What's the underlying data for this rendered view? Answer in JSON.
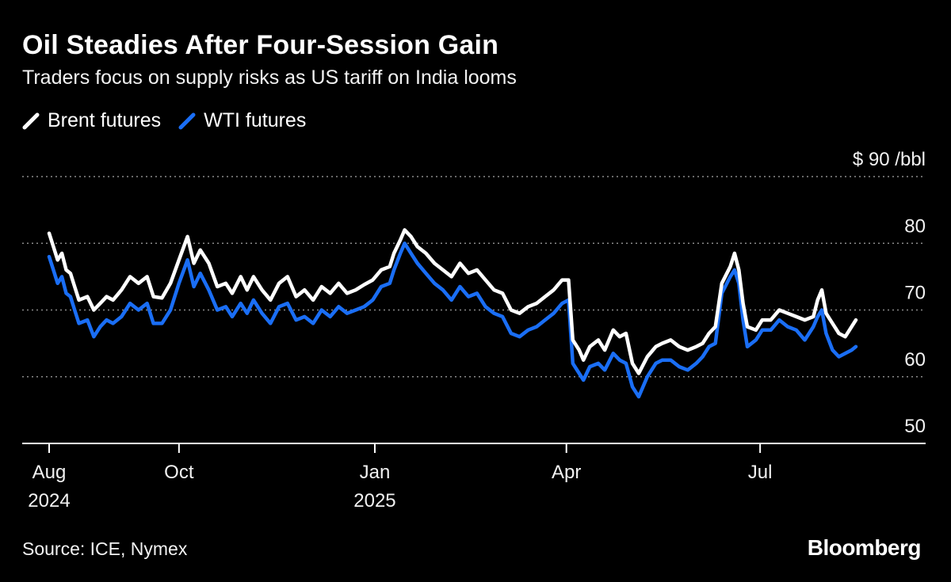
{
  "title": "Oil Steadies After Four-Session Gain",
  "subtitle": "Traders focus on supply risks as US tariff on India looms",
  "source": "Source: ICE, Nymex",
  "brand": "Bloomberg",
  "colors": {
    "background": "#000000",
    "brent": "#ffffff",
    "wti": "#1a6ef5",
    "grid": "#8a8a8a"
  },
  "chart_data": {
    "type": "line",
    "title": "Oil Steadies After Four-Session Gain",
    "subtitle": "Traders focus on supply risks as US tariff on India looms",
    "ylabel": "",
    "y_unit_label": "$ 90 /bbl",
    "ylim": [
      50,
      90
    ],
    "yticks": [
      {
        "value": 90,
        "label": "$ 90 /bbl"
      },
      {
        "value": 80,
        "label": "80"
      },
      {
        "value": 70,
        "label": "70"
      },
      {
        "value": 60,
        "label": "60"
      },
      {
        "value": 50,
        "label": "50"
      }
    ],
    "xlim": [
      "2024-08-01",
      "2025-08-15"
    ],
    "xticks": [
      {
        "date": "2024-08-01",
        "label": "Aug",
        "year": "2024"
      },
      {
        "date": "2024-10-01",
        "label": "Oct",
        "year": ""
      },
      {
        "date": "2025-01-01",
        "label": "Jan",
        "year": "2025"
      },
      {
        "date": "2025-04-01",
        "label": "Apr",
        "year": ""
      },
      {
        "date": "2025-07-01",
        "label": "Jul",
        "year": ""
      }
    ],
    "grid": true,
    "legend_position": "top-left",
    "series": [
      {
        "name": "Brent futures",
        "color": "#ffffff",
        "points": [
          [
            "2024-08-01",
            81.5
          ],
          [
            "2024-08-03",
            79.5
          ],
          [
            "2024-08-05",
            77.5
          ],
          [
            "2024-08-07",
            78.5
          ],
          [
            "2024-08-09",
            76.0
          ],
          [
            "2024-08-11",
            75.5
          ],
          [
            "2024-08-13",
            73.5
          ],
          [
            "2024-08-15",
            71.5
          ],
          [
            "2024-08-19",
            72.0
          ],
          [
            "2024-08-22",
            70.0
          ],
          [
            "2024-08-25",
            71.0
          ],
          [
            "2024-08-28",
            72.0
          ],
          [
            "2024-08-31",
            71.5
          ],
          [
            "2024-09-04",
            73.0
          ],
          [
            "2024-09-08",
            75.0
          ],
          [
            "2024-09-12",
            74.0
          ],
          [
            "2024-09-16",
            75.0
          ],
          [
            "2024-09-19",
            72.0
          ],
          [
            "2024-09-23",
            71.8
          ],
          [
            "2024-09-27",
            74.0
          ],
          [
            "2024-10-01",
            77.5
          ],
          [
            "2024-10-05",
            81.0
          ],
          [
            "2024-10-08",
            77.0
          ],
          [
            "2024-10-11",
            79.0
          ],
          [
            "2024-10-15",
            77.0
          ],
          [
            "2024-10-19",
            73.5
          ],
          [
            "2024-10-23",
            74.0
          ],
          [
            "2024-10-26",
            72.5
          ],
          [
            "2024-10-30",
            75.0
          ],
          [
            "2024-11-02",
            73.0
          ],
          [
            "2024-11-05",
            75.0
          ],
          [
            "2024-11-09",
            73.0
          ],
          [
            "2024-11-13",
            71.5
          ],
          [
            "2024-11-17",
            74.0
          ],
          [
            "2024-11-21",
            75.0
          ],
          [
            "2024-11-25",
            72.0
          ],
          [
            "2024-11-29",
            73.0
          ],
          [
            "2024-12-03",
            71.5
          ],
          [
            "2024-12-07",
            73.5
          ],
          [
            "2024-12-11",
            72.5
          ],
          [
            "2024-12-15",
            74.0
          ],
          [
            "2024-12-19",
            72.5
          ],
          [
            "2024-12-23",
            73.0
          ],
          [
            "2024-12-27",
            73.8
          ],
          [
            "2024-12-31",
            74.5
          ],
          [
            "2025-01-04",
            76.0
          ],
          [
            "2025-01-08",
            76.5
          ],
          [
            "2025-01-10",
            78.5
          ],
          [
            "2025-01-13",
            80.5
          ],
          [
            "2025-01-15",
            82.0
          ],
          [
            "2025-01-18",
            81.0
          ],
          [
            "2025-01-21",
            79.5
          ],
          [
            "2025-01-25",
            78.5
          ],
          [
            "2025-01-29",
            77.0
          ],
          [
            "2025-02-02",
            76.0
          ],
          [
            "2025-02-06",
            75.0
          ],
          [
            "2025-02-10",
            77.0
          ],
          [
            "2025-02-14",
            75.5
          ],
          [
            "2025-02-18",
            76.0
          ],
          [
            "2025-02-22",
            74.5
          ],
          [
            "2025-02-26",
            73.0
          ],
          [
            "2025-03-02",
            72.5
          ],
          [
            "2025-03-06",
            70.0
          ],
          [
            "2025-03-10",
            69.5
          ],
          [
            "2025-03-14",
            70.5
          ],
          [
            "2025-03-18",
            71.0
          ],
          [
            "2025-03-22",
            72.0
          ],
          [
            "2025-03-26",
            73.0
          ],
          [
            "2025-03-30",
            74.5
          ],
          [
            "2025-04-02",
            74.5
          ],
          [
            "2025-04-04",
            65.5
          ],
          [
            "2025-04-07",
            64.0
          ],
          [
            "2025-04-09",
            62.5
          ],
          [
            "2025-04-12",
            64.5
          ],
          [
            "2025-04-16",
            65.5
          ],
          [
            "2025-04-19",
            64.0
          ],
          [
            "2025-04-23",
            67.0
          ],
          [
            "2025-04-26",
            66.0
          ],
          [
            "2025-04-29",
            66.5
          ],
          [
            "2025-05-02",
            62.0
          ],
          [
            "2025-05-05",
            60.5
          ],
          [
            "2025-05-09",
            63.0
          ],
          [
            "2025-05-13",
            64.5
          ],
          [
            "2025-05-16",
            65.0
          ],
          [
            "2025-05-20",
            65.5
          ],
          [
            "2025-05-24",
            64.5
          ],
          [
            "2025-05-28",
            64.0
          ],
          [
            "2025-06-01",
            64.5
          ],
          [
            "2025-06-04",
            65.0
          ],
          [
            "2025-06-07",
            66.5
          ],
          [
            "2025-06-10",
            67.5
          ],
          [
            "2025-06-13",
            74.0
          ],
          [
            "2025-06-17",
            76.5
          ],
          [
            "2025-06-19",
            78.5
          ],
          [
            "2025-06-21",
            76.0
          ],
          [
            "2025-06-23",
            71.0
          ],
          [
            "2025-06-25",
            67.5
          ],
          [
            "2025-06-29",
            67.0
          ],
          [
            "2025-07-02",
            68.5
          ],
          [
            "2025-07-06",
            68.5
          ],
          [
            "2025-07-10",
            70.0
          ],
          [
            "2025-07-14",
            69.5
          ],
          [
            "2025-07-18",
            69.0
          ],
          [
            "2025-07-22",
            68.5
          ],
          [
            "2025-07-26",
            69.0
          ],
          [
            "2025-07-28",
            71.5
          ],
          [
            "2025-07-30",
            73.0
          ],
          [
            "2025-08-01",
            69.5
          ],
          [
            "2025-08-04",
            68.0
          ],
          [
            "2025-08-07",
            66.5
          ],
          [
            "2025-08-10",
            66.0
          ],
          [
            "2025-08-13",
            67.5
          ],
          [
            "2025-08-15",
            68.5
          ]
        ]
      },
      {
        "name": "WTI futures",
        "color": "#1a6ef5",
        "points": [
          [
            "2024-08-01",
            78.0
          ],
          [
            "2024-08-03",
            76.0
          ],
          [
            "2024-08-05",
            74.0
          ],
          [
            "2024-08-07",
            75.0
          ],
          [
            "2024-08-09",
            72.5
          ],
          [
            "2024-08-11",
            72.0
          ],
          [
            "2024-08-13",
            70.0
          ],
          [
            "2024-08-15",
            68.0
          ],
          [
            "2024-08-19",
            68.5
          ],
          [
            "2024-08-22",
            66.0
          ],
          [
            "2024-08-25",
            67.5
          ],
          [
            "2024-08-28",
            68.5
          ],
          [
            "2024-08-31",
            68.0
          ],
          [
            "2024-09-04",
            69.0
          ],
          [
            "2024-09-08",
            71.0
          ],
          [
            "2024-09-12",
            70.0
          ],
          [
            "2024-09-16",
            71.0
          ],
          [
            "2024-09-19",
            68.0
          ],
          [
            "2024-09-23",
            68.0
          ],
          [
            "2024-09-27",
            70.0
          ],
          [
            "2024-10-01",
            74.0
          ],
          [
            "2024-10-05",
            77.5
          ],
          [
            "2024-10-08",
            73.5
          ],
          [
            "2024-10-11",
            75.5
          ],
          [
            "2024-10-15",
            73.0
          ],
          [
            "2024-10-19",
            70.0
          ],
          [
            "2024-10-23",
            70.5
          ],
          [
            "2024-10-26",
            69.0
          ],
          [
            "2024-10-30",
            71.0
          ],
          [
            "2024-11-02",
            69.5
          ],
          [
            "2024-11-05",
            71.5
          ],
          [
            "2024-11-09",
            69.5
          ],
          [
            "2024-11-13",
            68.0
          ],
          [
            "2024-11-17",
            70.5
          ],
          [
            "2024-11-21",
            71.0
          ],
          [
            "2024-11-25",
            68.5
          ],
          [
            "2024-11-29",
            69.0
          ],
          [
            "2024-12-03",
            68.0
          ],
          [
            "2024-12-07",
            70.0
          ],
          [
            "2024-12-11",
            69.0
          ],
          [
            "2024-12-15",
            70.5
          ],
          [
            "2024-12-19",
            69.5
          ],
          [
            "2024-12-23",
            70.0
          ],
          [
            "2024-12-27",
            70.5
          ],
          [
            "2024-12-31",
            71.5
          ],
          [
            "2025-01-04",
            73.5
          ],
          [
            "2025-01-08",
            74.0
          ],
          [
            "2025-01-10",
            76.0
          ],
          [
            "2025-01-13",
            78.5
          ],
          [
            "2025-01-15",
            80.0
          ],
          [
            "2025-01-18",
            78.5
          ],
          [
            "2025-01-21",
            77.0
          ],
          [
            "2025-01-25",
            75.5
          ],
          [
            "2025-01-29",
            74.0
          ],
          [
            "2025-02-02",
            73.0
          ],
          [
            "2025-02-06",
            71.5
          ],
          [
            "2025-02-10",
            73.5
          ],
          [
            "2025-02-14",
            72.0
          ],
          [
            "2025-02-18",
            72.5
          ],
          [
            "2025-02-22",
            70.5
          ],
          [
            "2025-02-26",
            69.5
          ],
          [
            "2025-03-02",
            69.0
          ],
          [
            "2025-03-06",
            66.5
          ],
          [
            "2025-03-10",
            66.0
          ],
          [
            "2025-03-14",
            67.0
          ],
          [
            "2025-03-18",
            67.5
          ],
          [
            "2025-03-22",
            68.5
          ],
          [
            "2025-03-26",
            69.5
          ],
          [
            "2025-03-30",
            71.0
          ],
          [
            "2025-04-02",
            71.5
          ],
          [
            "2025-04-04",
            62.0
          ],
          [
            "2025-04-07",
            60.5
          ],
          [
            "2025-04-09",
            59.5
          ],
          [
            "2025-04-12",
            61.5
          ],
          [
            "2025-04-16",
            62.0
          ],
          [
            "2025-04-19",
            61.0
          ],
          [
            "2025-04-23",
            63.5
          ],
          [
            "2025-04-26",
            62.5
          ],
          [
            "2025-04-29",
            62.0
          ],
          [
            "2025-05-02",
            58.5
          ],
          [
            "2025-05-05",
            57.0
          ],
          [
            "2025-05-09",
            60.0
          ],
          [
            "2025-05-13",
            62.0
          ],
          [
            "2025-05-16",
            62.5
          ],
          [
            "2025-05-20",
            62.5
          ],
          [
            "2025-05-24",
            61.5
          ],
          [
            "2025-05-28",
            61.0
          ],
          [
            "2025-06-01",
            62.0
          ],
          [
            "2025-06-04",
            63.0
          ],
          [
            "2025-06-07",
            64.5
          ],
          [
            "2025-06-10",
            65.0
          ],
          [
            "2025-06-13",
            72.5
          ],
          [
            "2025-06-17",
            75.0
          ],
          [
            "2025-06-19",
            76.0
          ],
          [
            "2025-06-21",
            74.0
          ],
          [
            "2025-06-23",
            68.5
          ],
          [
            "2025-06-25",
            64.5
          ],
          [
            "2025-06-29",
            65.5
          ],
          [
            "2025-07-02",
            67.0
          ],
          [
            "2025-07-06",
            67.0
          ],
          [
            "2025-07-10",
            68.5
          ],
          [
            "2025-07-14",
            67.5
          ],
          [
            "2025-07-18",
            67.0
          ],
          [
            "2025-07-22",
            65.5
          ],
          [
            "2025-07-26",
            67.5
          ],
          [
            "2025-07-28",
            69.0
          ],
          [
            "2025-07-30",
            70.0
          ],
          [
            "2025-08-01",
            66.5
          ],
          [
            "2025-08-04",
            64.0
          ],
          [
            "2025-08-07",
            63.0
          ],
          [
            "2025-08-10",
            63.5
          ],
          [
            "2025-08-13",
            64.0
          ],
          [
            "2025-08-15",
            64.5
          ]
        ]
      }
    ]
  }
}
